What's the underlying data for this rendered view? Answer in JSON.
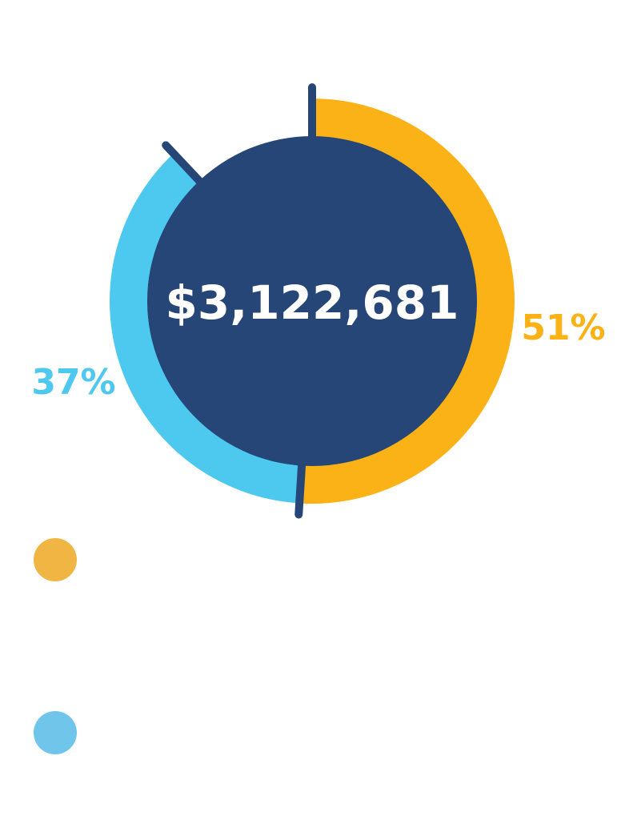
{
  "chart_data": {
    "type": "pie",
    "center_label": "$3,122,681",
    "slices": [
      {
        "label": "51%",
        "value": 51,
        "color": "#FBB216"
      },
      {
        "label": "37%",
        "value": 37,
        "color": "#4DC8EE"
      }
    ],
    "center_color": "#254677",
    "divider_color": "#254677"
  },
  "legend": [
    {
      "color": "#F0B542"
    },
    {
      "color": "#70C5EA"
    }
  ]
}
